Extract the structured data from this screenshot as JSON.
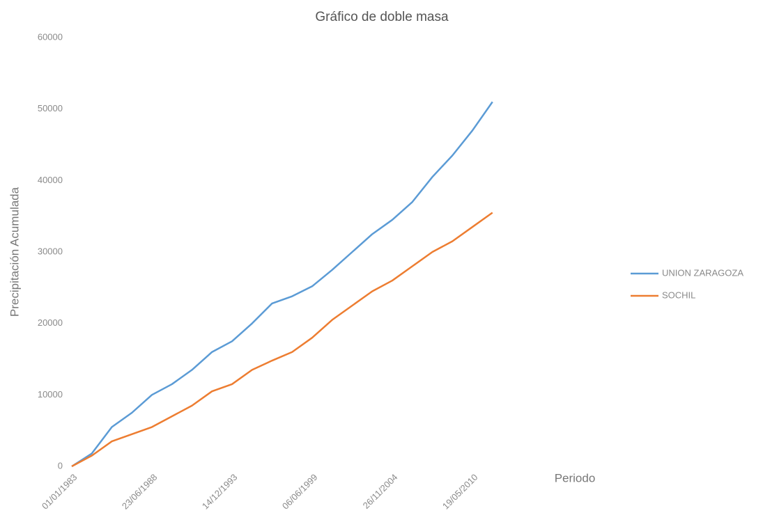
{
  "chart_data": {
    "type": "line",
    "title": "Gráfico de doble masa",
    "x_label": "Periodo",
    "y_label": "Precipitación Acumulada",
    "categories": [
      "01/01/1983",
      null,
      null,
      null,
      "23/06/1988",
      null,
      null,
      null,
      "14/12/1993",
      null,
      null,
      null,
      "06/06/1999",
      null,
      null,
      null,
      "26/11/2004",
      null,
      null,
      null,
      "19/05/2010",
      null
    ],
    "series": [
      {
        "name": "UNION ZARAGOZA",
        "color": "#5b9bd5",
        "values": [
          0,
          1800,
          5500,
          7500,
          10000,
          11500,
          13500,
          16000,
          17500,
          20000,
          22800,
          23800,
          25200,
          27500,
          30000,
          32500,
          34500,
          37000,
          40500,
          43500,
          47000,
          51000
        ]
      },
      {
        "name": "SOCHIL",
        "color": "#ed7d31",
        "values": [
          0,
          1500,
          3500,
          4500,
          5500,
          7000,
          8500,
          10500,
          11500,
          13500,
          14800,
          16000,
          18000,
          20500,
          22500,
          24500,
          26000,
          28000,
          30000,
          31500,
          33500,
          35500
        ]
      }
    ],
    "ylim": [
      0,
      60000
    ],
    "yticks": [
      0,
      10000,
      20000,
      30000,
      40000,
      50000,
      60000
    ],
    "legend": "right"
  }
}
